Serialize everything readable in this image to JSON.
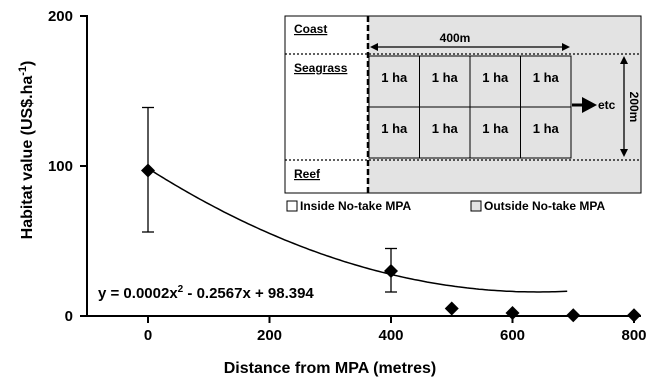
{
  "chart_data": {
    "type": "scatter",
    "xlabel": "Distance from MPA (metres)",
    "ylabel": "Habitat value (US$.ha",
    "ylabel_sup": "-1",
    "ylabel_close": ")",
    "xlim": [
      0,
      800
    ],
    "ylim": [
      0,
      200
    ],
    "x_ticks": [
      "0",
      "200",
      "400",
      "600",
      "800"
    ],
    "x_tick_values": [
      0,
      200,
      400,
      600,
      800
    ],
    "y_ticks": [
      "0",
      "100",
      "200"
    ],
    "y_tick_values": [
      0,
      100,
      200
    ],
    "points": [
      {
        "x": 0,
        "y": 97,
        "err_low": 56,
        "err_high": 139
      },
      {
        "x": 400,
        "y": 30,
        "err_low": 16,
        "err_high": 45
      },
      {
        "x": 500,
        "y": 5
      },
      {
        "x": 600,
        "y": 2
      },
      {
        "x": 700,
        "y": 0.5
      },
      {
        "x": 800,
        "y": 0.5
      }
    ],
    "trendline": {
      "a": 0.0002,
      "b": -0.2567,
      "c": 98.394,
      "x_max": 690
    },
    "equation": {
      "part1": "y = 0.0002x",
      "sup": "2",
      "part2": " - 0.2567x + 98.394"
    }
  },
  "inset": {
    "coast_label": "Coast",
    "seagrass_label": "Seagrass",
    "reef_label": "Reef",
    "width_label": "400m",
    "height_label": "200m",
    "etc_label": "etc",
    "cells": [
      "1 ha",
      "1 ha",
      "1 ha",
      "1 ha",
      "1 ha",
      "1 ha",
      "1 ha",
      "1 ha"
    ],
    "legend_inside": "Inside No-take MPA",
    "legend_outside": "Outside No-take MPA",
    "colors": {
      "outside_fill": "#e3e3e3",
      "inside_fill": "#ffffff"
    }
  }
}
